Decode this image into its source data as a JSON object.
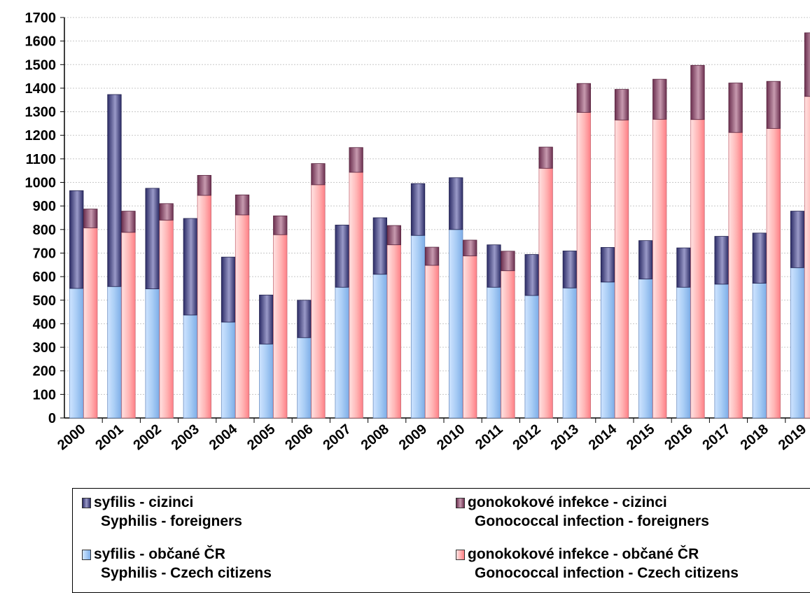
{
  "chart_data": {
    "type": "bar",
    "stacked": true,
    "grouped": true,
    "categories": [
      "2000",
      "2001",
      "2002",
      "2003",
      "2004",
      "2005",
      "2006",
      "2007",
      "2008",
      "2009",
      "2010",
      "2011",
      "2012",
      "2013",
      "2014",
      "2015",
      "2016",
      "2017",
      "2018",
      "2019"
    ],
    "ylim": [
      0,
      1700
    ],
    "yticks": [
      0,
      100,
      200,
      300,
      400,
      500,
      600,
      700,
      800,
      900,
      1000,
      1100,
      1200,
      1300,
      1400,
      1500,
      1600,
      1700
    ],
    "grid": true,
    "legend_position": "bottom",
    "groups": [
      {
        "name": "syfilis",
        "series": [
          {
            "name": "syfilis - občané ČR",
            "name_en": "Syphilis - Czech citizens",
            "color": "#a9cdf5",
            "values": [
              550,
              558,
              548,
              437,
              407,
              314,
              341,
              555,
              610,
              775,
              800,
              555,
              520,
              552,
              577,
              590,
              555,
              568,
              572,
              638
            ]
          },
          {
            "name": "syfilis - cizinci",
            "name_en": "Syphilis - foreigners",
            "color": "#4a4a8c",
            "values": [
              415,
              815,
              427,
              410,
              276,
              208,
              159,
              264,
              240,
              220,
              220,
              180,
              174,
              157,
              147,
              163,
              167,
              203,
              213,
              240
            ]
          }
        ]
      },
      {
        "name": "gonokokové infekce",
        "series": [
          {
            "name": "gonokokové infekce - občané ČR",
            "name_en": "Gonococcal infection - Czech citizens",
            "color": "#ff9a9a",
            "values": [
              807,
              788,
              840,
              945,
              862,
              778,
              990,
              1043,
              735,
              648,
              688,
              625,
              1060,
              1297,
              1265,
              1268,
              1267,
              1212,
              1229,
              1365
            ]
          },
          {
            "name": "gonokokové infekce - cizinci",
            "name_en": "Gonococcal infection - foreigners",
            "color": "#8e4a6b",
            "values": [
              80,
              90,
              70,
              85,
              85,
              80,
              90,
              105,
              82,
              77,
              67,
              83,
              90,
              123,
              130,
              170,
              230,
              210,
              200,
              270
            ]
          }
        ]
      }
    ]
  },
  "legend": [
    {
      "line1": "syfilis - cizinci",
      "line2": "Syphilis - foreigners",
      "color": "#4a4a8c"
    },
    {
      "line1": "gonokokové infekce - cizinci",
      "line2": "Gonococcal infection - foreigners",
      "color": "#8e4a6b"
    },
    {
      "line1": "syfilis - občané ČR",
      "line2": "Syphilis - Czech citizens",
      "color": "#a9cdf5"
    },
    {
      "line1": "gonokokové infekce - občané ČR",
      "line2": "Gonococcal infection - Czech citizens",
      "color": "#ff9a9a"
    }
  ]
}
